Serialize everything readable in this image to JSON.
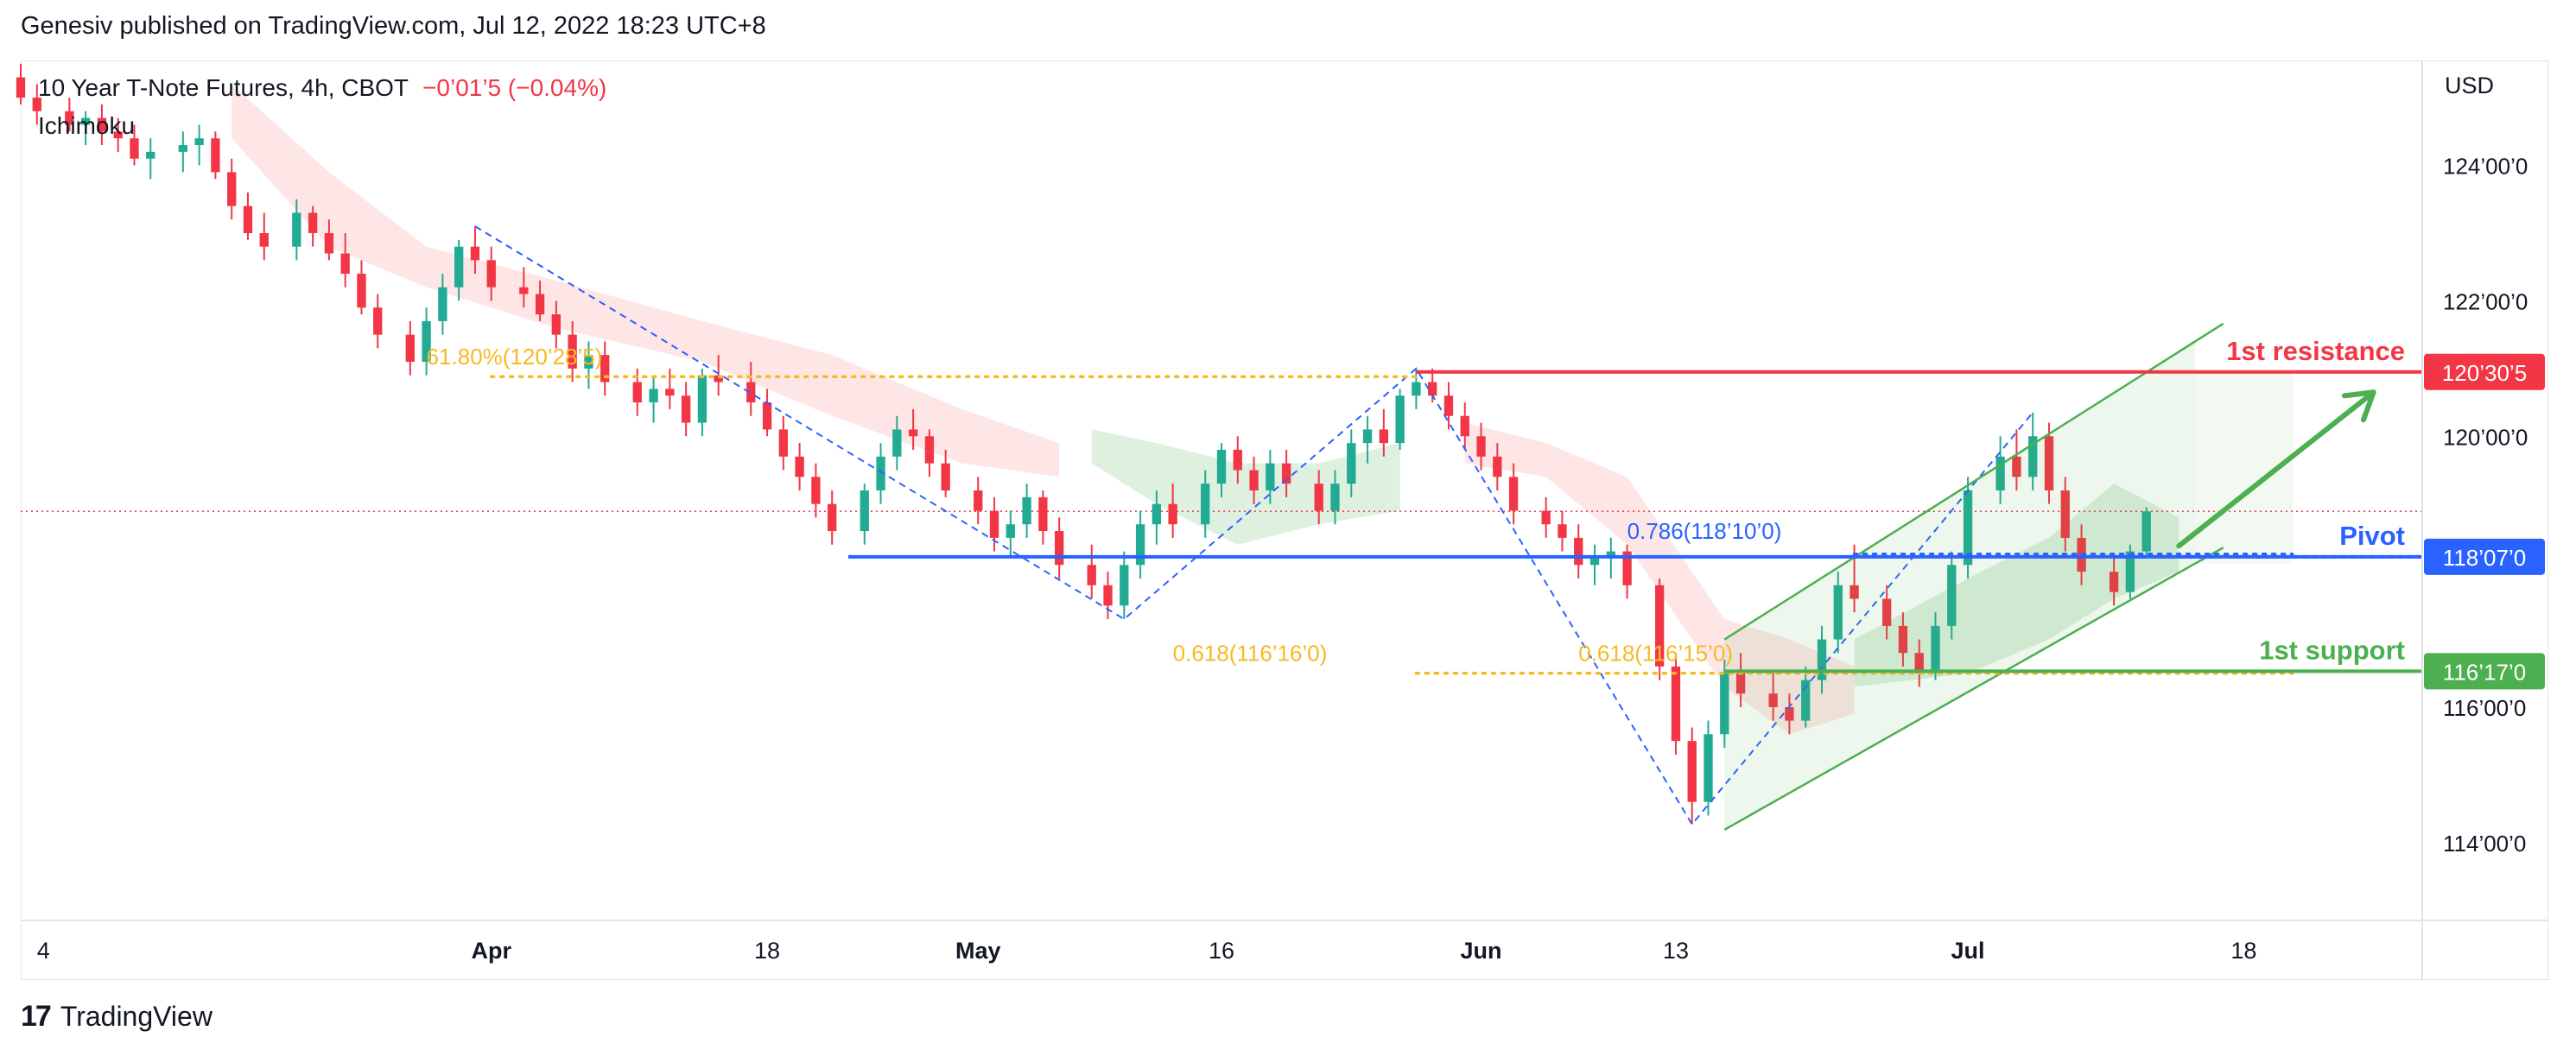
{
  "header": {
    "published_by": "Genesiv published on TradingView.com, Jul 12, 2022 18:23 UTC+8"
  },
  "legend": {
    "symbol": "10 Year T-Note Futures, 4h, CBOT",
    "change": "−0’01’5 (−0.04%)",
    "indicator": "Ichimoku"
  },
  "footer": {
    "logo_glyph": "17",
    "brand": "TradingView"
  },
  "colors": {
    "up": "#22ab94",
    "down": "#f23645",
    "resistance": "#f23645",
    "pivot": "#2962ff",
    "support": "#4caf50",
    "fib": "#f7b924",
    "channel": "#4caf50",
    "cloud_bull": "#c8e6c9",
    "cloud_bear": "#ffd6d6"
  },
  "chart_data": {
    "type": "candlestick",
    "currency": "USD",
    "y_axis": {
      "tick_labels": [
        "124’00’0",
        "122’00’0",
        "120’00’0",
        "116’00’0",
        "114’00’0"
      ],
      "tick_values": [
        124,
        122,
        120,
        116,
        114
      ],
      "range": [
        112.85,
        125.55
      ]
    },
    "x_axis": {
      "tick_labels": [
        "4",
        "Apr",
        "18",
        "May",
        "16",
        "Jun",
        "13",
        "Jul",
        "18"
      ],
      "tick_dates": [
        "2022-03-04",
        "2022-04-01",
        "2022-04-18",
        "2022-05-01",
        "2022-05-16",
        "2022-06-01",
        "2022-06-13",
        "2022-07-01",
        "2022-07-18"
      ],
      "range": [
        "2022-03-03",
        "2022-07-29"
      ]
    },
    "levels": [
      {
        "name": "1st resistance",
        "value": 120.95,
        "label": "120’30’5",
        "start": "2022-05-28"
      },
      {
        "name": "Pivot",
        "value": 118.22,
        "label": "118’07’0",
        "start": "2022-04-23"
      },
      {
        "name": "1st support",
        "value": 116.53,
        "label": "116’17’0",
        "start": "2022-06-16"
      }
    ],
    "fib_labels": [
      {
        "text": "61.80%(120’28’5)",
        "value": 120.88,
        "date": "2022-03-28"
      },
      {
        "text": "0.618(116’16’0)",
        "value": 116.5,
        "date": "2022-05-13"
      },
      {
        "text": "0.618(116’15’0)",
        "value": 116.5,
        "date": "2022-06-07"
      },
      {
        "text": "0.786(118’10’0)",
        "value": 118.31,
        "date": "2022-06-10"
      }
    ],
    "fib_dotted_lines": [
      {
        "value": 120.88,
        "from": "2022-04-01",
        "to": "2022-05-28"
      },
      {
        "value": 116.5,
        "from": "2022-05-28",
        "to": "2022-07-21"
      },
      {
        "value": 118.26,
        "from": "2022-06-24",
        "to": "2022-07-21"
      }
    ],
    "current_price_line": 118.89,
    "swing_lines": [
      [
        "2022-03-31",
        123.1
      ],
      [
        "2022-05-10",
        117.3
      ],
      [
        "2022-05-28",
        121.0
      ],
      [
        "2022-06-14",
        114.27
      ],
      [
        "2022-07-05",
        120.35
      ]
    ],
    "channel": {
      "lower": [
        [
          "2022-06-16",
          114.19
        ],
        [
          "2022-07-15",
          118.12
        ]
      ],
      "upper": [
        [
          "2022-06-16",
          117.0
        ],
        [
          "2022-07-15",
          121.4
        ]
      ],
      "fill_to": "2022-07-15"
    },
    "target_arrow": {
      "from": [
        "2022-07-14",
        118.38
      ],
      "to": [
        "2022-07-26",
        120.65
      ]
    },
    "cloud_bear": [
      [
        "2022-03-16",
        125.2,
        124.4
      ],
      [
        "2022-03-22",
        123.9,
        122.8
      ],
      [
        "2022-03-28",
        122.8,
        122.2
      ],
      [
        "2022-04-05",
        122.3,
        121.6
      ],
      [
        "2022-04-14",
        121.7,
        121.1
      ],
      [
        "2022-04-22",
        121.2,
        120.3
      ],
      [
        "2022-04-30",
        120.4,
        119.6
      ],
      [
        "2022-05-06",
        119.9,
        119.4
      ],
      [
        "2022-05-31",
        120.2,
        119.6
      ],
      [
        "2022-06-05",
        119.9,
        119.4
      ],
      [
        "2022-06-10",
        119.4,
        118.4
      ],
      [
        "2022-06-16",
        117.3,
        116.3
      ],
      [
        "2022-06-20",
        117.0,
        115.6
      ],
      [
        "2022-06-24",
        116.6,
        115.9
      ]
    ],
    "cloud_bull": [
      [
        "2022-05-08",
        120.1,
        119.6
      ],
      [
        "2022-05-12",
        119.9,
        119.0
      ],
      [
        "2022-05-17",
        119.6,
        118.4
      ],
      [
        "2022-05-22",
        119.6,
        118.7
      ],
      [
        "2022-05-27",
        119.9,
        118.9
      ],
      [
        "2022-06-24",
        117.0,
        116.3
      ],
      [
        "2022-07-01",
        117.9,
        116.5
      ],
      [
        "2022-07-06",
        118.5,
        117.0
      ],
      [
        "2022-07-10",
        119.3,
        117.6
      ],
      [
        "2022-07-14",
        118.8,
        118.0
      ]
    ],
    "candles": [
      [
        "2022-03-03",
        125.3,
        125.5,
        124.9,
        125.0
      ],
      [
        "2022-03-04",
        125.0,
        125.2,
        124.6,
        124.8
      ],
      [
        "2022-03-06",
        124.8,
        125.0,
        124.5,
        124.6
      ],
      [
        "2022-03-07",
        124.6,
        124.8,
        124.3,
        124.7
      ],
      [
        "2022-03-08",
        124.7,
        124.9,
        124.3,
        124.5
      ],
      [
        "2022-03-09",
        124.5,
        124.7,
        124.2,
        124.4
      ],
      [
        "2022-03-10",
        124.4,
        124.6,
        124.0,
        124.1
      ],
      [
        "2022-03-11",
        124.1,
        124.4,
        123.8,
        124.2
      ],
      [
        "2022-03-13",
        124.2,
        124.5,
        123.9,
        124.3
      ],
      [
        "2022-03-14",
        124.3,
        124.6,
        124.0,
        124.4
      ],
      [
        "2022-03-15",
        124.4,
        124.5,
        123.8,
        123.9
      ],
      [
        "2022-03-16",
        123.9,
        124.1,
        123.2,
        123.4
      ],
      [
        "2022-03-17",
        123.4,
        123.6,
        122.9,
        123.0
      ],
      [
        "2022-03-18",
        123.0,
        123.3,
        122.6,
        122.8
      ],
      [
        "2022-03-20",
        122.8,
        123.5,
        122.6,
        123.3
      ],
      [
        "2022-03-21",
        123.3,
        123.4,
        122.8,
        123.0
      ],
      [
        "2022-03-22",
        123.0,
        123.2,
        122.6,
        122.7
      ],
      [
        "2022-03-23",
        122.7,
        123.0,
        122.2,
        122.4
      ],
      [
        "2022-03-24",
        122.4,
        122.6,
        121.8,
        121.9
      ],
      [
        "2022-03-25",
        121.9,
        122.1,
        121.3,
        121.5
      ],
      [
        "2022-03-27",
        121.5,
        121.7,
        120.9,
        121.1
      ],
      [
        "2022-03-28",
        121.1,
        121.9,
        120.9,
        121.7
      ],
      [
        "2022-03-29",
        121.7,
        122.4,
        121.5,
        122.2
      ],
      [
        "2022-03-30",
        122.2,
        122.9,
        122.0,
        122.8
      ],
      [
        "2022-03-31",
        122.8,
        123.1,
        122.4,
        122.6
      ],
      [
        "2022-04-01",
        122.6,
        122.8,
        122.0,
        122.2
      ],
      [
        "2022-04-03",
        122.2,
        122.5,
        121.9,
        122.1
      ],
      [
        "2022-04-04",
        122.1,
        122.3,
        121.7,
        121.8
      ],
      [
        "2022-04-05",
        121.8,
        122.0,
        121.3,
        121.5
      ],
      [
        "2022-04-06",
        121.5,
        121.7,
        120.8,
        121.0
      ],
      [
        "2022-04-07",
        121.0,
        121.4,
        120.7,
        121.2
      ],
      [
        "2022-04-08",
        121.2,
        121.4,
        120.6,
        120.8
      ],
      [
        "2022-04-10",
        120.8,
        121.0,
        120.3,
        120.5
      ],
      [
        "2022-04-11",
        120.5,
        120.9,
        120.2,
        120.7
      ],
      [
        "2022-04-12",
        120.7,
        121.0,
        120.4,
        120.6
      ],
      [
        "2022-04-13",
        120.6,
        120.8,
        120.0,
        120.2
      ],
      [
        "2022-04-14",
        120.2,
        121.0,
        120.0,
        120.9
      ],
      [
        "2022-04-15",
        120.9,
        121.2,
        120.6,
        120.8
      ],
      [
        "2022-04-17",
        120.8,
        121.1,
        120.3,
        120.5
      ],
      [
        "2022-04-18",
        120.5,
        120.7,
        120.0,
        120.1
      ],
      [
        "2022-04-19",
        120.1,
        120.3,
        119.5,
        119.7
      ],
      [
        "2022-04-20",
        119.7,
        119.9,
        119.2,
        119.4
      ],
      [
        "2022-04-21",
        119.4,
        119.6,
        118.8,
        119.0
      ],
      [
        "2022-04-22",
        119.0,
        119.2,
        118.4,
        118.6
      ],
      [
        "2022-04-24",
        118.6,
        119.3,
        118.4,
        119.2
      ],
      [
        "2022-04-25",
        119.2,
        119.9,
        119.0,
        119.7
      ],
      [
        "2022-04-26",
        119.7,
        120.3,
        119.5,
        120.1
      ],
      [
        "2022-04-27",
        120.1,
        120.4,
        119.8,
        120.0
      ],
      [
        "2022-04-28",
        120.0,
        120.1,
        119.4,
        119.6
      ],
      [
        "2022-04-29",
        119.6,
        119.8,
        119.1,
        119.2
      ],
      [
        "2022-05-01",
        119.2,
        119.4,
        118.7,
        118.9
      ],
      [
        "2022-05-02",
        118.9,
        119.1,
        118.3,
        118.5
      ],
      [
        "2022-05-03",
        118.5,
        118.9,
        118.2,
        118.7
      ],
      [
        "2022-05-04",
        118.7,
        119.3,
        118.5,
        119.1
      ],
      [
        "2022-05-05",
        119.1,
        119.2,
        118.4,
        118.6
      ],
      [
        "2022-05-06",
        118.6,
        118.8,
        117.9,
        118.1
      ],
      [
        "2022-05-08",
        118.1,
        118.4,
        117.6,
        117.8
      ],
      [
        "2022-05-09",
        117.8,
        118.0,
        117.3,
        117.5
      ],
      [
        "2022-05-10",
        117.5,
        118.3,
        117.3,
        118.1
      ],
      [
        "2022-05-11",
        118.1,
        118.9,
        117.9,
        118.7
      ],
      [
        "2022-05-12",
        118.7,
        119.2,
        118.4,
        119.0
      ],
      [
        "2022-05-13",
        119.0,
        119.3,
        118.5,
        118.7
      ],
      [
        "2022-05-15",
        118.7,
        119.5,
        118.5,
        119.3
      ],
      [
        "2022-05-16",
        119.3,
        119.9,
        119.1,
        119.8
      ],
      [
        "2022-05-17",
        119.8,
        120.0,
        119.3,
        119.5
      ],
      [
        "2022-05-18",
        119.5,
        119.7,
        119.0,
        119.2
      ],
      [
        "2022-05-19",
        119.2,
        119.8,
        119.0,
        119.6
      ],
      [
        "2022-05-20",
        119.6,
        119.8,
        119.1,
        119.3
      ],
      [
        "2022-05-22",
        119.3,
        119.5,
        118.7,
        118.9
      ],
      [
        "2022-05-23",
        118.9,
        119.5,
        118.7,
        119.3
      ],
      [
        "2022-05-24",
        119.3,
        120.1,
        119.1,
        119.9
      ],
      [
        "2022-05-25",
        119.9,
        120.3,
        119.6,
        120.1
      ],
      [
        "2022-05-26",
        120.1,
        120.4,
        119.7,
        119.9
      ],
      [
        "2022-05-27",
        119.9,
        120.7,
        119.8,
        120.6
      ],
      [
        "2022-05-28",
        120.6,
        121.0,
        120.4,
        120.8
      ],
      [
        "2022-05-29",
        120.8,
        121.0,
        120.5,
        120.6
      ],
      [
        "2022-05-30",
        120.6,
        120.8,
        120.1,
        120.3
      ],
      [
        "2022-05-31",
        120.3,
        120.5,
        119.8,
        120.0
      ],
      [
        "2022-06-01",
        120.0,
        120.2,
        119.5,
        119.7
      ],
      [
        "2022-06-02",
        119.7,
        119.9,
        119.2,
        119.4
      ],
      [
        "2022-06-03",
        119.4,
        119.6,
        118.7,
        118.9
      ],
      [
        "2022-06-05",
        118.9,
        119.1,
        118.5,
        118.7
      ],
      [
        "2022-06-06",
        118.7,
        118.9,
        118.3,
        118.5
      ],
      [
        "2022-06-07",
        118.5,
        118.7,
        117.9,
        118.1
      ],
      [
        "2022-06-08",
        118.1,
        118.4,
        117.8,
        118.2
      ],
      [
        "2022-06-09",
        118.2,
        118.5,
        117.9,
        118.3
      ],
      [
        "2022-06-10",
        118.3,
        118.4,
        117.6,
        117.8
      ],
      [
        "2022-06-12",
        117.8,
        117.9,
        116.4,
        116.6
      ],
      [
        "2022-06-13",
        116.6,
        116.8,
        115.3,
        115.5
      ],
      [
        "2022-06-14",
        115.5,
        115.7,
        114.27,
        114.6
      ],
      [
        "2022-06-15",
        114.6,
        115.8,
        114.4,
        115.6
      ],
      [
        "2022-06-16",
        115.6,
        116.7,
        115.4,
        116.5
      ],
      [
        "2022-06-17",
        116.5,
        116.8,
        116.0,
        116.2
      ],
      [
        "2022-06-19",
        116.2,
        116.5,
        115.8,
        116.0
      ],
      [
        "2022-06-20",
        116.0,
        116.2,
        115.6,
        115.8
      ],
      [
        "2022-06-21",
        115.8,
        116.6,
        115.7,
        116.4
      ],
      [
        "2022-06-22",
        116.4,
        117.2,
        116.2,
        117.0
      ],
      [
        "2022-06-23",
        117.0,
        118.0,
        116.8,
        117.8
      ],
      [
        "2022-06-24",
        117.8,
        118.4,
        117.4,
        117.6
      ],
      [
        "2022-06-26",
        117.6,
        117.8,
        117.0,
        117.2
      ],
      [
        "2022-06-27",
        117.2,
        117.4,
        116.6,
        116.8
      ],
      [
        "2022-06-28",
        116.8,
        117.0,
        116.3,
        116.5
      ],
      [
        "2022-06-29",
        116.5,
        117.4,
        116.4,
        117.2
      ],
      [
        "2022-06-30",
        117.2,
        118.3,
        117.0,
        118.1
      ],
      [
        "2022-07-01",
        118.1,
        119.4,
        117.9,
        119.2
      ],
      [
        "2022-07-03",
        119.2,
        120.0,
        119.0,
        119.7
      ],
      [
        "2022-07-04",
        119.7,
        120.1,
        119.2,
        119.4
      ],
      [
        "2022-07-05",
        119.4,
        120.35,
        119.2,
        120.0
      ],
      [
        "2022-07-06",
        120.0,
        120.2,
        119.0,
        119.2
      ],
      [
        "2022-07-07",
        119.2,
        119.4,
        118.3,
        118.5
      ],
      [
        "2022-07-08",
        118.5,
        118.7,
        117.8,
        118.0
      ],
      [
        "2022-07-10",
        118.0,
        118.2,
        117.5,
        117.7
      ],
      [
        "2022-07-11",
        117.7,
        118.4,
        117.6,
        118.3
      ],
      [
        "2022-07-12",
        118.3,
        118.95,
        118.2,
        118.89
      ]
    ]
  }
}
